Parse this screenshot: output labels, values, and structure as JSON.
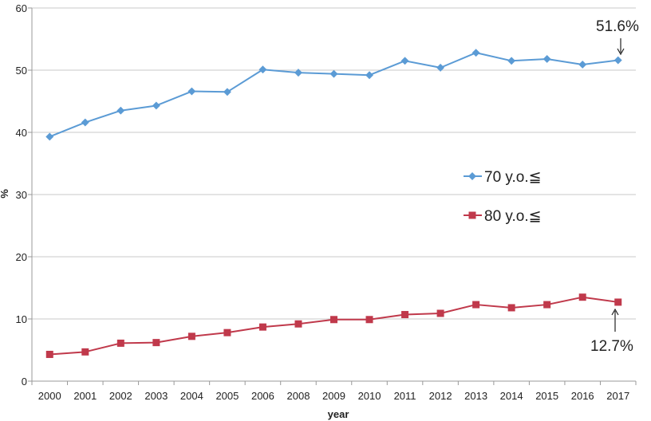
{
  "chart_data": {
    "type": "line",
    "xlabel": "year",
    "ylabel": "%",
    "ylim": [
      0,
      60
    ],
    "yticks": [
      "0",
      "10",
      "20",
      "30",
      "40",
      "50",
      "60"
    ],
    "grid": "horizontal",
    "legend_position": "right-middle",
    "categories": [
      "2000",
      "2001",
      "2002",
      "2003",
      "2004",
      "2005",
      "2006",
      "2008",
      "2009",
      "2010",
      "2011",
      "2012",
      "2013",
      "2014",
      "2015",
      "2016",
      "2017"
    ],
    "series": [
      {
        "name": "70 y.o.≦",
        "color": "#5b9bd5",
        "marker": "diamond",
        "values": [
          39.3,
          41.6,
          43.5,
          44.3,
          46.6,
          46.5,
          50.1,
          49.6,
          49.4,
          49.2,
          51.5,
          50.4,
          52.8,
          51.5,
          51.8,
          50.9,
          51.6
        ]
      },
      {
        "name": "80 y.o.≦",
        "color": "#c0394b",
        "marker": "square",
        "values": [
          4.3,
          4.7,
          6.1,
          6.2,
          7.2,
          7.8,
          8.7,
          9.2,
          9.9,
          9.9,
          10.7,
          10.9,
          12.3,
          11.8,
          12.3,
          13.5,
          12.7
        ]
      }
    ],
    "annotations": [
      {
        "text": "51.6%",
        "series": 0,
        "category": "2017"
      },
      {
        "text": "12.7%",
        "series": 1,
        "category": "2017"
      }
    ]
  }
}
